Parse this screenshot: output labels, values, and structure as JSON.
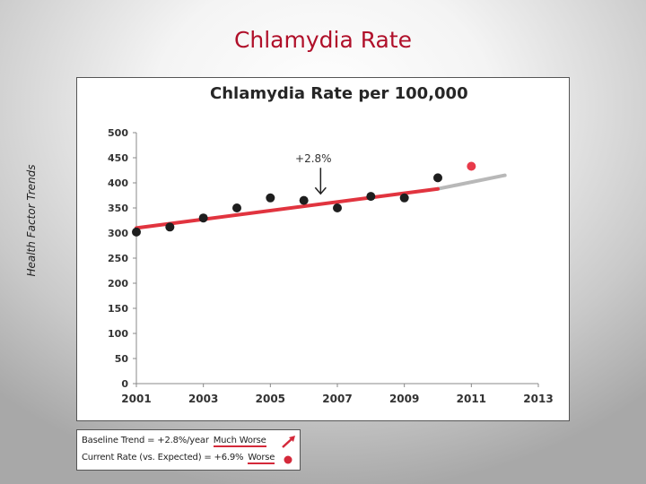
{
  "slide": {
    "title": "Chlamydia Rate",
    "side_label": "Health Factor Trends"
  },
  "colors": {
    "title": "#b0102a",
    "trend": "#e1343f",
    "projection": "#b8b8b8",
    "point": "#1e1e1e",
    "current_point": "#e83a4a"
  },
  "chart_data": {
    "type": "scatter",
    "title": "Chlamydia Rate per 100,000",
    "xlabel": "",
    "ylabel": "",
    "xlim": [
      2001,
      2013
    ],
    "ylim": [
      0,
      500
    ],
    "x_ticks": [
      2001,
      2003,
      2005,
      2007,
      2009,
      2011,
      2013
    ],
    "y_ticks": [
      0,
      50,
      100,
      150,
      200,
      250,
      300,
      350,
      400,
      450,
      500
    ],
    "grid": false,
    "series": [
      {
        "name": "Observed rate",
        "x": [
          2001,
          2002,
          2003,
          2004,
          2005,
          2006,
          2007,
          2008,
          2009,
          2010
        ],
        "y": [
          302,
          312,
          330,
          350,
          370,
          365,
          350,
          373,
          370,
          410
        ]
      },
      {
        "name": "Current rate",
        "x": [
          2011
        ],
        "y": [
          433
        ]
      }
    ],
    "trend_line": {
      "x": [
        2001,
        2010
      ],
      "y": [
        310,
        388
      ]
    },
    "projection_line": {
      "x": [
        2010,
        2012
      ],
      "y": [
        388,
        415
      ]
    },
    "annotation": {
      "text": "+2.8%",
      "x": 2006.5,
      "y": 371
    }
  },
  "legend": {
    "baseline_text": "Baseline Trend = +2.8%/year",
    "baseline_status": "Much Worse",
    "current_text": "Current Rate (vs. Expected) = +6.9%",
    "current_status": "Worse"
  }
}
